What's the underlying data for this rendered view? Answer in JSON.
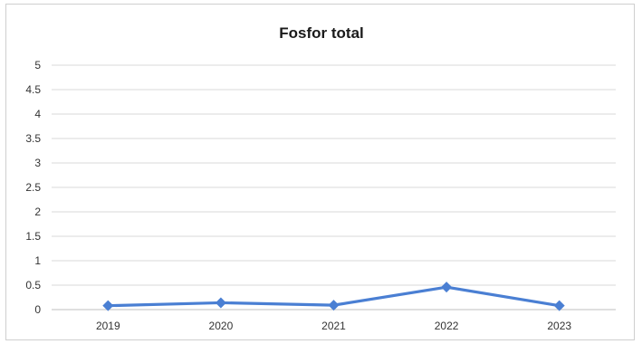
{
  "chart_data": {
    "type": "line",
    "title": "Fosfor total",
    "xlabel": "",
    "ylabel": "",
    "categories": [
      "2019",
      "2020",
      "2021",
      "2022",
      "2023"
    ],
    "series": [
      {
        "values": [
          0.08,
          0.14,
          0.09,
          0.46,
          0.08
        ]
      }
    ],
    "ylim": [
      0,
      5
    ],
    "yticks": [
      "0",
      "0.5",
      "1",
      "1.5",
      "2",
      "2.5",
      "3",
      "3.5",
      "4",
      "4.5",
      "5"
    ],
    "grid": true,
    "legend": "none",
    "colors": {
      "series": "#4a7fd3",
      "grid": "#d9d9d9"
    }
  }
}
